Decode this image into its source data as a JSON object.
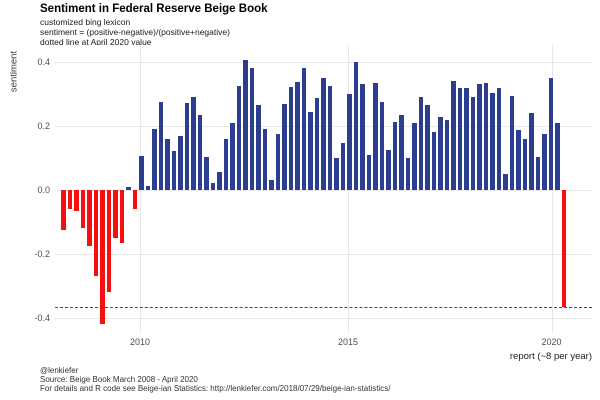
{
  "header": {
    "title": "Sentiment in Federal Reserve Beige Book"
  },
  "subtitle_lines": [
    "customized bing lexicon",
    "sentiment = (positive-negative)/(positive+negative)",
    "dotted line at April 2020 value"
  ],
  "caption_lines": [
    "@lenkiefer",
    "Source: Beige Book March 2008 - April 2020",
    "For details and R code see Beige-ian Statistics: http://lenkiefer.com/2018/07/29/beige-ian-statistics/"
  ],
  "colors": {
    "bar_positive": "#2c3e8f",
    "bar_negative": "#f50f0f",
    "grid": "#e7e7e7",
    "dotted_line": "#4a4a4a",
    "axis_text": "#4d4d4d"
  },
  "chart_data": {
    "type": "bar",
    "title": "Sentiment in Federal Reserve Beige Book",
    "xlabel": "report (~8 per year)",
    "ylabel": "sentiment",
    "ylim": [
      -0.45,
      0.45
    ],
    "grid": true,
    "y_ticks": [
      {
        "label": "0.4",
        "value": 0.4
      },
      {
        "label": "0.2",
        "value": 0.2
      },
      {
        "label": "0.0",
        "value": 0.0
      },
      {
        "label": "-0.2",
        "value": -0.2
      },
      {
        "label": "-0.4",
        "value": -0.4
      }
    ],
    "x_ticks": [
      {
        "label": "2010",
        "index": 11.8
      },
      {
        "label": "2015",
        "index": 43.8
      },
      {
        "label": "2020",
        "index": 75.1
      }
    ],
    "dotted_line_value": -0.367,
    "color_rule": "negative values red, positive values navy",
    "values": [
      -0.125,
      -0.06,
      -0.066,
      -0.12,
      -0.175,
      -0.27,
      -0.42,
      -0.32,
      -0.15,
      -0.165,
      0.01,
      -0.06,
      0.106,
      0.013,
      0.19,
      0.276,
      0.159,
      0.122,
      0.169,
      0.271,
      0.29,
      0.234,
      0.103,
      0.021,
      0.057,
      0.16,
      0.208,
      0.325,
      0.406,
      0.38,
      0.266,
      0.19,
      0.031,
      0.175,
      0.27,
      0.323,
      0.339,
      0.38,
      0.245,
      0.287,
      0.35,
      0.325,
      0.1,
      0.148,
      0.3,
      0.4,
      0.33,
      0.109,
      0.333,
      0.276,
      0.125,
      0.213,
      0.234,
      0.1,
      0.21,
      0.29,
      0.266,
      0.18,
      0.227,
      0.22,
      0.34,
      0.32,
      0.318,
      0.29,
      0.33,
      0.335,
      0.304,
      0.32,
      0.05,
      0.294,
      0.188,
      0.158,
      0.24,
      0.103,
      0.175,
      0.35,
      0.21,
      -0.367
    ]
  }
}
